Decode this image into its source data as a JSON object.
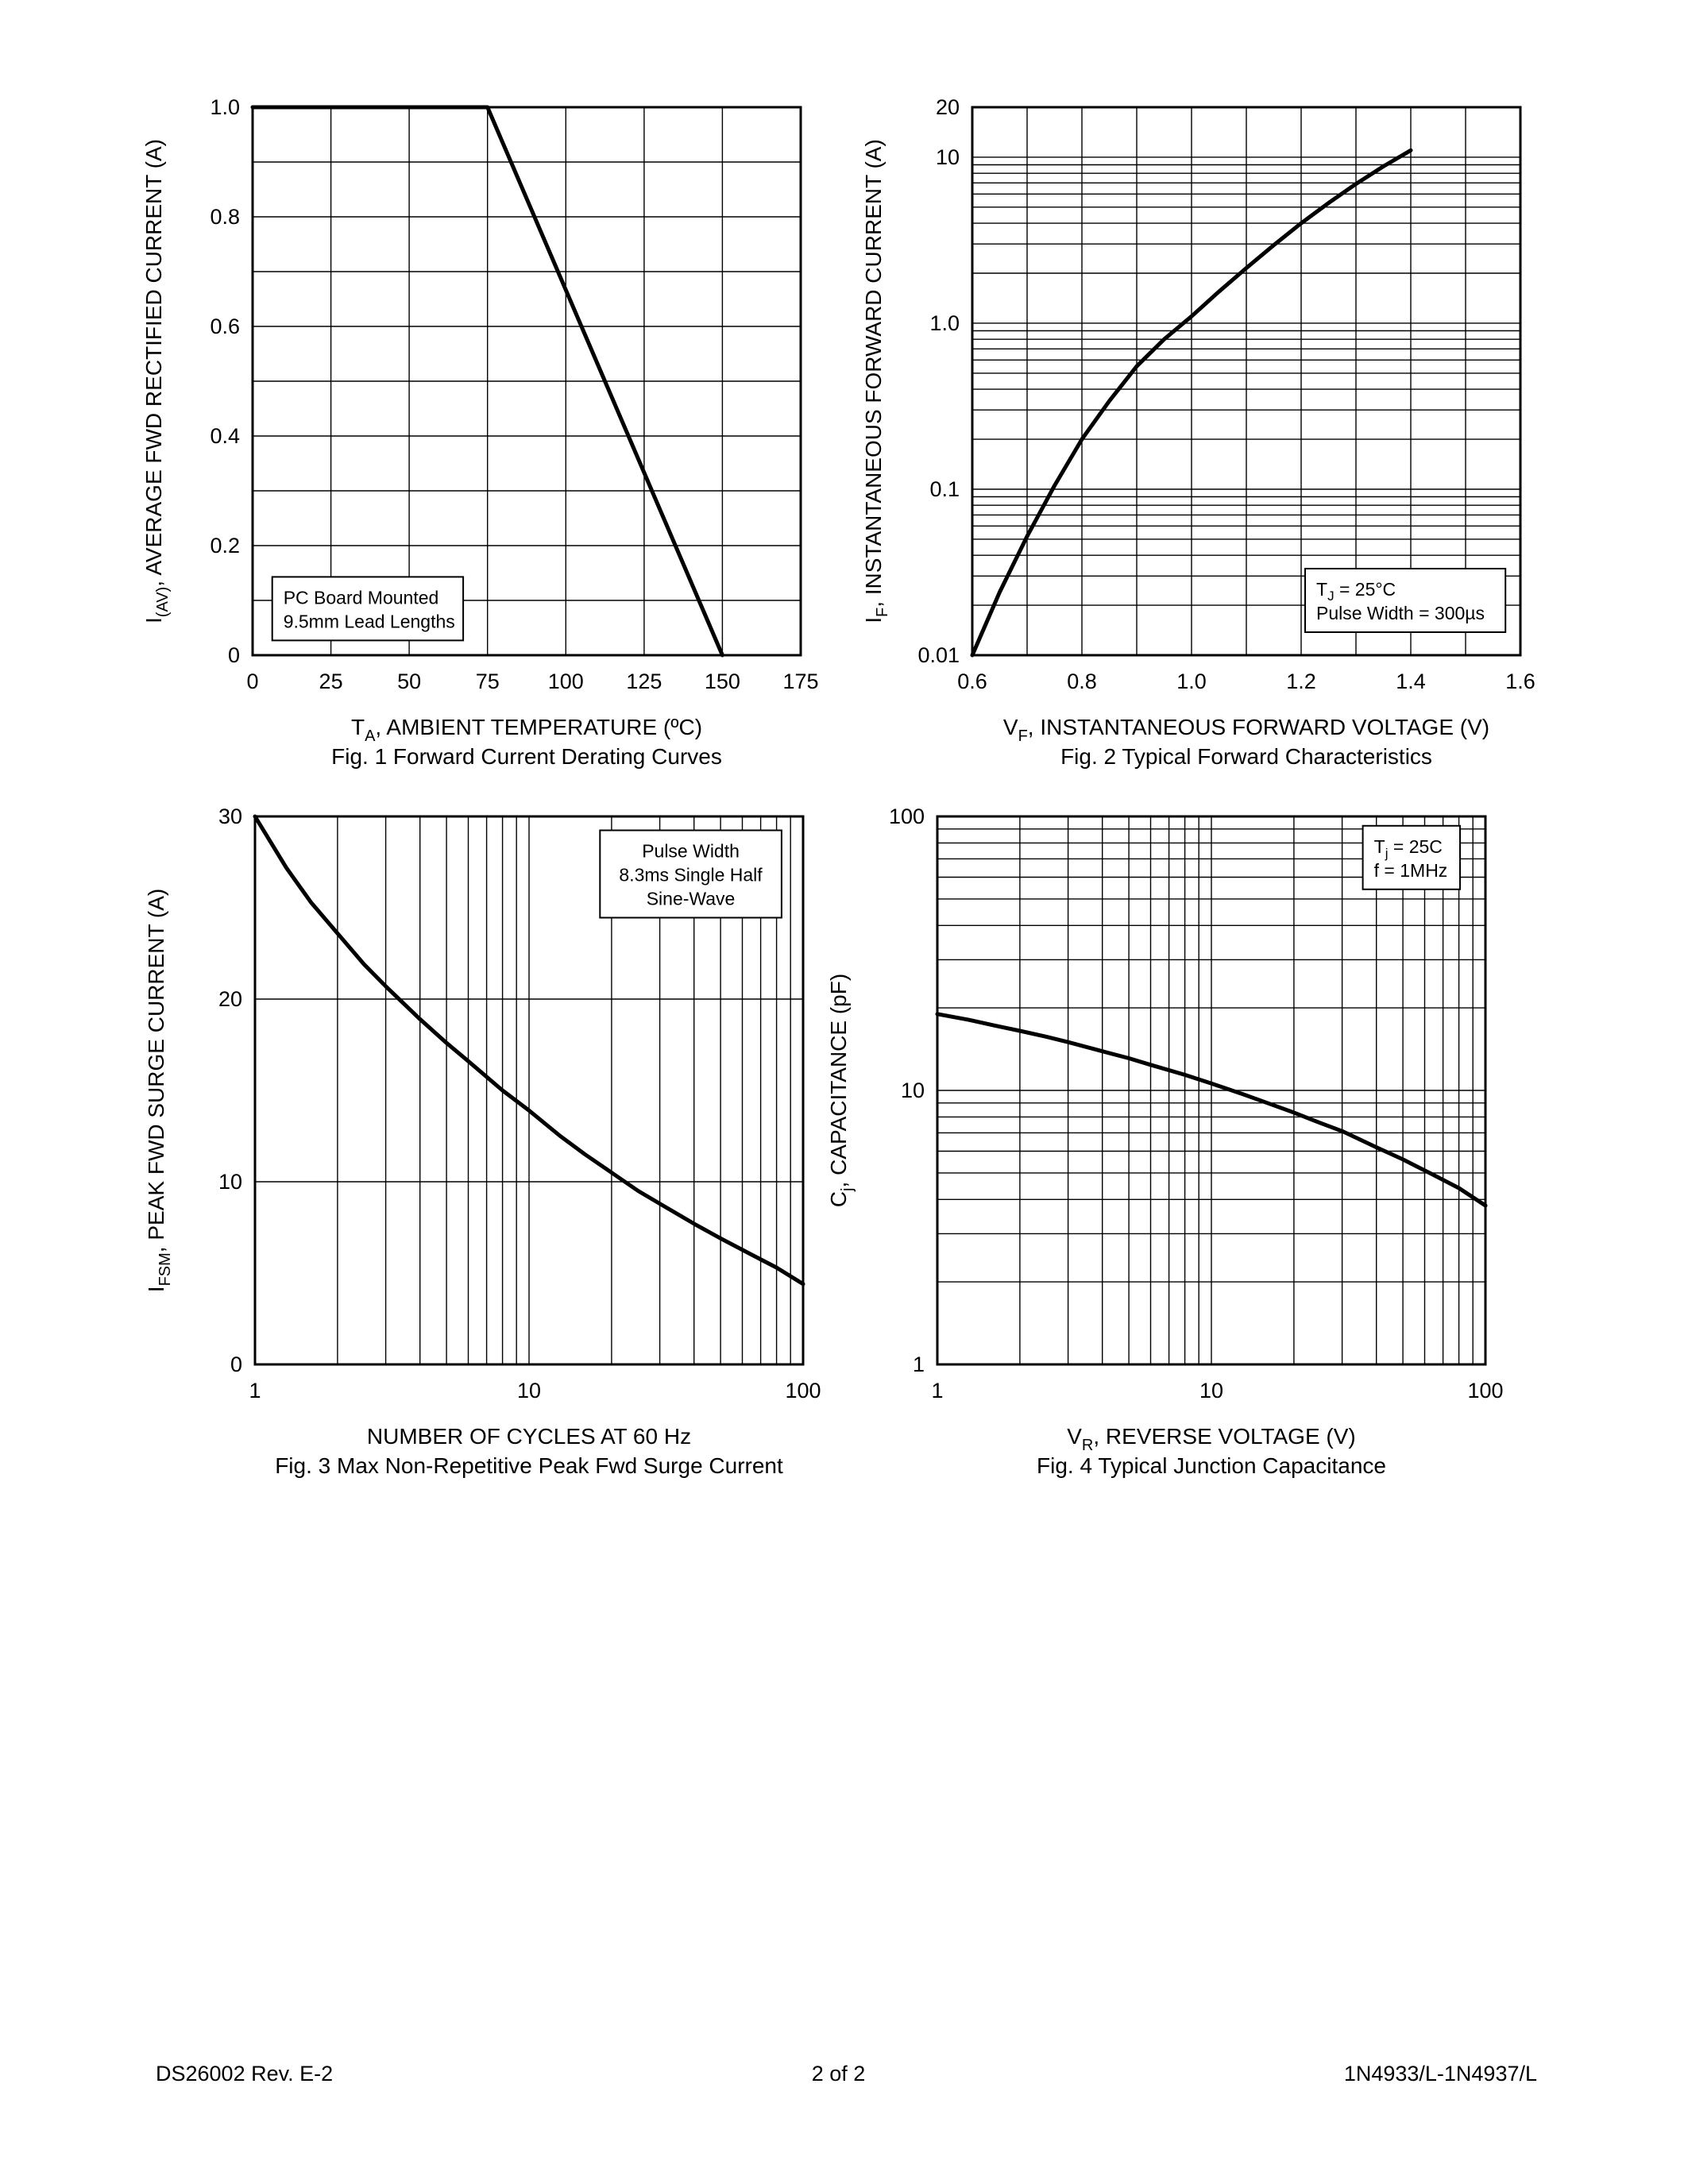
{
  "footer": {
    "left": "DS26002 Rev. E-2",
    "center": "2 of 2",
    "right": "1N4933/L-1N4937/L"
  },
  "chart_data": [
    {
      "id": "fig1",
      "type": "line",
      "caption": "Fig. 1  Forward Current Derating Curves",
      "xlabel": "TA, AMBIENT TEMPERATURE (ºC)",
      "ylabel": "I(AV), AVERAGE FWD RECTIFIED CURRENT (A)",
      "xlim": [
        0,
        175
      ],
      "ylim": [
        0,
        1.0
      ],
      "x": {
        "scale": "linear",
        "min": 0,
        "max": 175,
        "title": [
          {
            "t": "T"
          },
          {
            "t": "A",
            "sub": true
          },
          {
            "t": ", AMBIENT TEMPERATURE (ºC)"
          }
        ],
        "ticks": [
          {
            "v": 0,
            "l": "0"
          },
          {
            "v": 25,
            "l": "25"
          },
          {
            "v": 50,
            "l": "50"
          },
          {
            "v": 75,
            "l": "75"
          },
          {
            "v": 100,
            "l": "100"
          },
          {
            "v": 125,
            "l": "125"
          },
          {
            "v": 150,
            "l": "150"
          },
          {
            "v": 175,
            "l": "175"
          }
        ],
        "grid": [
          0,
          25,
          50,
          75,
          100,
          125,
          150,
          175
        ]
      },
      "y": {
        "scale": "linear",
        "min": 0,
        "max": 1.0,
        "title": [
          {
            "t": "I"
          },
          {
            "t": "(AV)",
            "sub": true
          },
          {
            "t": ", AVERAGE FWD RECTIFIED CURRENT (A)"
          }
        ],
        "ticks": [
          {
            "v": 0,
            "l": "0"
          },
          {
            "v": 0.2,
            "l": "0.2"
          },
          {
            "v": 0.4,
            "l": "0.4"
          },
          {
            "v": 0.6,
            "l": "0.6"
          },
          {
            "v": 0.8,
            "l": "0.8"
          },
          {
            "v": 1.0,
            "l": "1.0"
          }
        ],
        "grid": [
          0,
          0.1,
          0.2,
          0.3,
          0.4,
          0.5,
          0.6,
          0.7,
          0.8,
          0.9,
          1.0
        ]
      },
      "series": [
        {
          "name": "derating-curve",
          "points": [
            [
              0,
              1.0
            ],
            [
              75,
              1.0
            ],
            [
              150,
              0
            ]
          ]
        }
      ],
      "annotation": {
        "cx": 0.21,
        "cy": 0.915,
        "align": "left",
        "lines": [
          [
            {
              "t": "PC Board Mounted"
            }
          ],
          [
            {
              "t": "9.5mm Lead Lengths"
            }
          ]
        ]
      }
    },
    {
      "id": "fig2",
      "type": "line",
      "caption": "Fig. 2  Typical Forward Characteristics",
      "xlabel": "VF, INSTANTANEOUS FORWARD VOLTAGE (V)",
      "ylabel": "IF, INSTANTANEOUS FORWARD CURRENT (A)",
      "xlim": [
        0.6,
        1.6
      ],
      "ylim": [
        0.01,
        20
      ],
      "x": {
        "scale": "linear",
        "min": 0.6,
        "max": 1.6,
        "title": [
          {
            "t": "V"
          },
          {
            "t": "F",
            "sub": true
          },
          {
            "t": ", INSTANTANEOUS FORWARD VOLTAGE (V)"
          }
        ],
        "ticks": [
          {
            "v": 0.6,
            "l": "0.6"
          },
          {
            "v": 0.8,
            "l": "0.8"
          },
          {
            "v": 1.0,
            "l": "1.0"
          },
          {
            "v": 1.2,
            "l": "1.2"
          },
          {
            "v": 1.4,
            "l": "1.4"
          },
          {
            "v": 1.6,
            "l": "1.6"
          }
        ],
        "grid": [
          0.6,
          0.7,
          0.8,
          0.9,
          1.0,
          1.1,
          1.2,
          1.3,
          1.4,
          1.5,
          1.6
        ]
      },
      "y": {
        "scale": "log",
        "min": 0.01,
        "max": 20,
        "title": [
          {
            "t": "I"
          },
          {
            "t": "F",
            "sub": true
          },
          {
            "t": ", INSTANTANEOUS FORWARD CURRENT (A)"
          }
        ],
        "ticks": [
          {
            "v": 20,
            "l": "20"
          },
          {
            "v": 10,
            "l": "10"
          },
          {
            "v": 1.0,
            "l": "1.0"
          },
          {
            "v": 0.1,
            "l": "0.1"
          },
          {
            "v": 0.01,
            "l": "0.01"
          }
        ],
        "grid": [
          0.01,
          0.02,
          0.03,
          0.04,
          0.05,
          0.06,
          0.07,
          0.08,
          0.09,
          0.1,
          0.2,
          0.3,
          0.4,
          0.5,
          0.6,
          0.7,
          0.8,
          0.9,
          1,
          2,
          3,
          4,
          5,
          6,
          7,
          8,
          9,
          10,
          20
        ]
      },
      "series": [
        {
          "name": "forward-characteristic",
          "points": [
            [
              0.6,
              0.01
            ],
            [
              0.65,
              0.024
            ],
            [
              0.7,
              0.052
            ],
            [
              0.75,
              0.105
            ],
            [
              0.8,
              0.2
            ],
            [
              0.85,
              0.34
            ],
            [
              0.9,
              0.55
            ],
            [
              0.95,
              0.8
            ],
            [
              1.0,
              1.1
            ],
            [
              1.05,
              1.55
            ],
            [
              1.1,
              2.15
            ],
            [
              1.15,
              2.95
            ],
            [
              1.2,
              4.0
            ],
            [
              1.25,
              5.3
            ],
            [
              1.3,
              6.9
            ],
            [
              1.35,
              8.8
            ],
            [
              1.4,
              11.0
            ]
          ]
        }
      ],
      "annotation": {
        "cx": 0.79,
        "cy": 0.9,
        "align": "left",
        "lines": [
          [
            {
              "t": "T"
            },
            {
              "t": "J",
              "sub": true
            },
            {
              "t": " = 25°C"
            }
          ],
          [
            {
              "t": "Pulse Width = 300µs"
            }
          ]
        ]
      }
    },
    {
      "id": "fig3",
      "type": "line",
      "caption": "Fig. 3 Max Non-Repetitive Peak Fwd Surge Current",
      "xlabel": "NUMBER OF CYCLES AT 60 Hz",
      "ylabel": "IFSM, PEAK FWD SURGE CURRENT (A)",
      "xlim": [
        1,
        100
      ],
      "ylim": [
        0,
        30
      ],
      "x": {
        "scale": "log",
        "min": 1,
        "max": 100,
        "title": [
          {
            "t": "NUMBER OF CYCLES AT 60 Hz"
          }
        ],
        "ticks": [
          {
            "v": 1,
            "l": "1"
          },
          {
            "v": 10,
            "l": "10"
          },
          {
            "v": 100,
            "l": "100"
          }
        ],
        "grid": [
          1,
          2,
          3,
          4,
          5,
          6,
          7,
          8,
          9,
          10,
          20,
          30,
          40,
          50,
          60,
          70,
          80,
          90,
          100
        ]
      },
      "y": {
        "scale": "linear",
        "min": 0,
        "max": 30,
        "title": [
          {
            "t": "I"
          },
          {
            "t": "FSM",
            "sub": true
          },
          {
            "t": ", PEAK FWD SURGE CURRENT (A)"
          }
        ],
        "ticks": [
          {
            "v": 0,
            "l": "0"
          },
          {
            "v": 10,
            "l": "10"
          },
          {
            "v": 20,
            "l": "20"
          },
          {
            "v": 30,
            "l": "30"
          }
        ],
        "grid": [
          0,
          10,
          20,
          30
        ]
      },
      "series": [
        {
          "name": "surge-current",
          "points": [
            [
              1,
              30
            ],
            [
              1.3,
              27.2
            ],
            [
              1.6,
              25.3
            ],
            [
              2,
              23.6
            ],
            [
              2.5,
              21.9
            ],
            [
              3,
              20.7
            ],
            [
              4,
              18.9
            ],
            [
              5,
              17.6
            ],
            [
              6,
              16.6
            ],
            [
              8,
              15.0
            ],
            [
              10,
              13.9
            ],
            [
              13,
              12.5
            ],
            [
              16,
              11.5
            ],
            [
              20,
              10.5
            ],
            [
              25,
              9.5
            ],
            [
              30,
              8.8
            ],
            [
              40,
              7.7
            ],
            [
              50,
              6.9
            ],
            [
              65,
              6.0
            ],
            [
              80,
              5.3
            ],
            [
              100,
              4.4
            ]
          ]
        }
      ],
      "annotation": {
        "cx": 0.795,
        "cy": 0.105,
        "align": "center",
        "lines": [
          [
            {
              "t": "Pulse Width"
            }
          ],
          [
            {
              "t": "8.3ms Single Half"
            }
          ],
          [
            {
              "t": "Sine-Wave"
            }
          ]
        ]
      }
    },
    {
      "id": "fig4",
      "type": "line",
      "caption": "Fig. 4  Typical Junction Capacitance",
      "xlabel": "VR, REVERSE VOLTAGE (V)",
      "ylabel": "Cj, CAPACITANCE (pF)",
      "xlim": [
        1,
        100
      ],
      "ylim": [
        1,
        100
      ],
      "x": {
        "scale": "log",
        "min": 1,
        "max": 100,
        "title": [
          {
            "t": "V"
          },
          {
            "t": "R",
            "sub": true
          },
          {
            "t": ", REVERSE VOLTAGE (V)"
          }
        ],
        "ticks": [
          {
            "v": 1,
            "l": "1"
          },
          {
            "v": 10,
            "l": "10"
          },
          {
            "v": 100,
            "l": "100"
          }
        ],
        "grid": [
          1,
          2,
          3,
          4,
          5,
          6,
          7,
          8,
          9,
          10,
          20,
          30,
          40,
          50,
          60,
          70,
          80,
          90,
          100
        ]
      },
      "y": {
        "scale": "log",
        "min": 1,
        "max": 100,
        "title": [
          {
            "t": "C"
          },
          {
            "t": "j",
            "sub": true
          },
          {
            "t": ", CAPACITANCE (pF)"
          }
        ],
        "ticks": [
          {
            "v": 1,
            "l": "1"
          },
          {
            "v": 10,
            "l": "10"
          },
          {
            "v": 100,
            "l": "100"
          }
        ],
        "grid": [
          1,
          2,
          3,
          4,
          5,
          6,
          7,
          8,
          9,
          10,
          20,
          30,
          40,
          50,
          60,
          70,
          80,
          90,
          100
        ]
      },
      "series": [
        {
          "name": "junction-capacitance",
          "points": [
            [
              1,
              19
            ],
            [
              1.3,
              18.1
            ],
            [
              1.6,
              17.3
            ],
            [
              2,
              16.5
            ],
            [
              2.5,
              15.7
            ],
            [
              3,
              15.0
            ],
            [
              4,
              13.9
            ],
            [
              5,
              13.1
            ],
            [
              6,
              12.4
            ],
            [
              8,
              11.4
            ],
            [
              10,
              10.6
            ],
            [
              13,
              9.7
            ],
            [
              16,
              9.0
            ],
            [
              20,
              8.3
            ],
            [
              25,
              7.6
            ],
            [
              30,
              7.1
            ],
            [
              40,
              6.2
            ],
            [
              50,
              5.6
            ],
            [
              65,
              4.9
            ],
            [
              80,
              4.4
            ],
            [
              100,
              3.8
            ]
          ]
        }
      ],
      "annotation": {
        "cx": 0.865,
        "cy": 0.075,
        "align": "left",
        "lines": [
          [
            {
              "t": "T"
            },
            {
              "t": "j",
              "sub": true
            },
            {
              "t": " = 25C"
            }
          ],
          [
            {
              "t": "f = 1MHz"
            }
          ]
        ]
      }
    }
  ]
}
